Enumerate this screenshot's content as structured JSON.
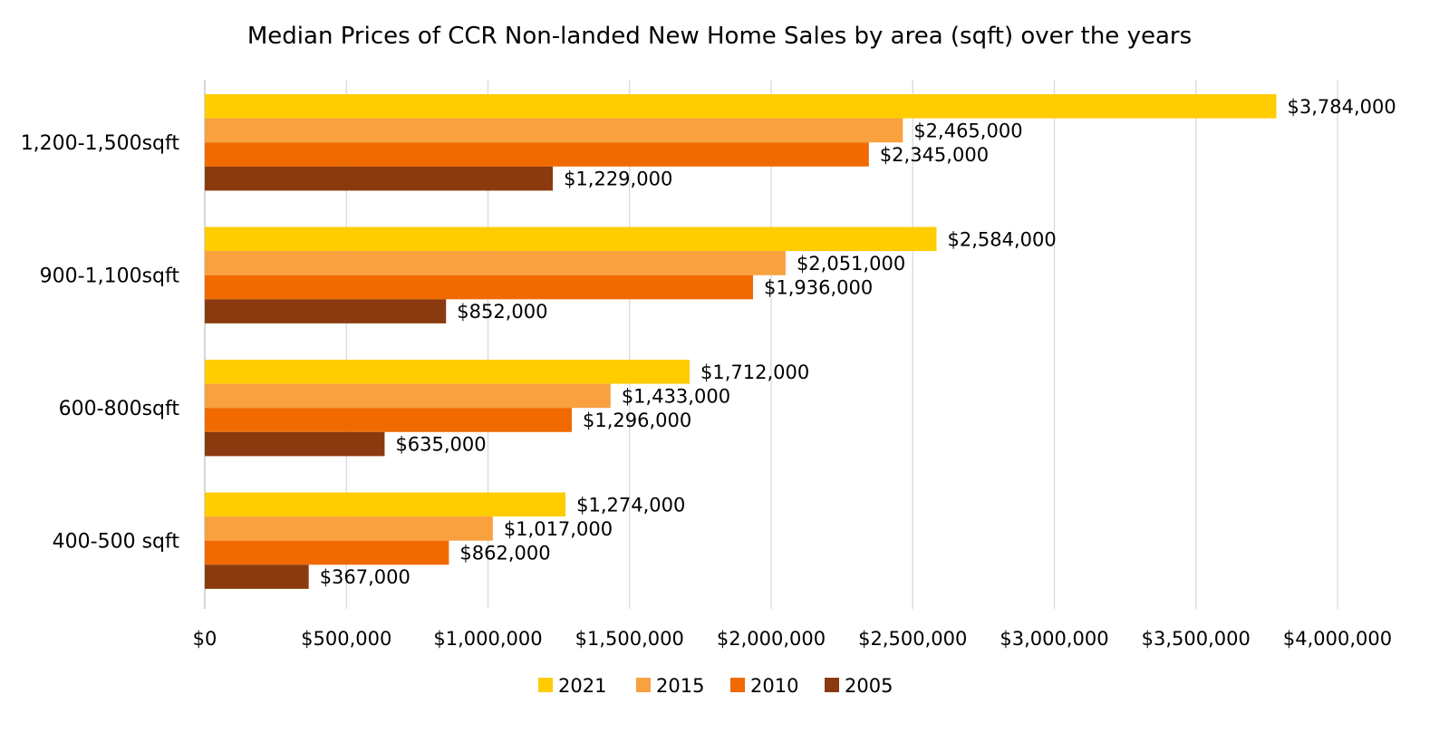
{
  "chart_data": {
    "type": "bar",
    "orientation": "horizontal",
    "title": "Median Prices of CCR Non-landed New Home Sales by area (sqft) over the years",
    "xlabel": "",
    "ylabel": "",
    "xlim": [
      0,
      4000000
    ],
    "x_ticks": [
      0,
      500000,
      1000000,
      1500000,
      2000000,
      2500000,
      3000000,
      3500000,
      4000000
    ],
    "x_tick_labels": [
      "$0",
      "$500,000",
      "$1,000,000",
      "$1,500,000",
      "$2,000,000",
      "$2,500,000",
      "$3,000,000",
      "$3,500,000",
      "$4,000,000"
    ],
    "grid": true,
    "legend_position": "bottom",
    "categories": [
      "1,200-1,500sqft",
      "900-1,100sqft",
      "600-800sqft",
      "400-500 sqft"
    ],
    "series": [
      {
        "name": "2021",
        "color": "#FFCC00",
        "values": [
          3784000,
          2584000,
          1712000,
          1274000
        ],
        "labels": [
          "$3,784,000",
          "$2,584,000",
          "$1,712,000",
          "$1,274,000"
        ]
      },
      {
        "name": "2015",
        "color": "#F9A03F",
        "values": [
          2465000,
          2051000,
          1433000,
          1017000
        ],
        "labels": [
          "$2,465,000",
          "$2,051,000",
          "$1,433,000",
          "$1,017,000"
        ]
      },
      {
        "name": "2010",
        "color": "#F06A00",
        "values": [
          2345000,
          1936000,
          1296000,
          862000
        ],
        "labels": [
          "$2,345,000",
          "$1,936,000",
          "$1,296,000",
          "$862,000"
        ]
      },
      {
        "name": "2005",
        "color": "#8B3A0F",
        "values": [
          1229000,
          852000,
          635000,
          367000
        ],
        "labels": [
          "$1,229,000",
          "$852,000",
          "$635,000",
          "$367,000"
        ]
      }
    ]
  }
}
